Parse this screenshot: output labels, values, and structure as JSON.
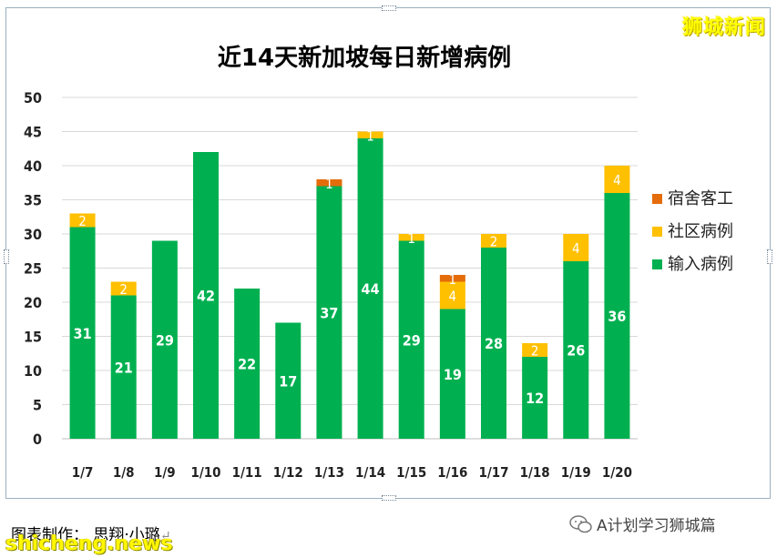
{
  "watermark_top": "狮城新闻",
  "credit": "图表制作： 思翔·小璐",
  "site": "shicheng.news",
  "wechat_label": "A计划学习狮城篇",
  "colors": {
    "local_import": "#00b050",
    "community": "#ffc000",
    "dormitory": "#e46c0a"
  },
  "chart_data": {
    "type": "bar",
    "stacked": true,
    "title": "近14天新加坡每日新增病例",
    "categories": [
      "1/7",
      "1/8",
      "1/9",
      "1/10",
      "1/11",
      "1/12",
      "1/13",
      "1/14",
      "1/15",
      "1/16",
      "1/17",
      "1/18",
      "1/19",
      "1/20"
    ],
    "series": [
      {
        "name": "输入病例",
        "color": "#00b050",
        "values": [
          31,
          21,
          29,
          42,
          22,
          17,
          37,
          44,
          29,
          19,
          28,
          12,
          26,
          36
        ]
      },
      {
        "name": "社区病例",
        "color": "#ffc000",
        "values": [
          2,
          2,
          0,
          0,
          0,
          0,
          0,
          1,
          1,
          4,
          2,
          2,
          4,
          4
        ]
      },
      {
        "name": "宿舍客工",
        "color": "#e46c0a",
        "values": [
          0,
          0,
          0,
          0,
          0,
          0,
          1,
          0,
          0,
          1,
          0,
          0,
          0,
          0
        ]
      }
    ],
    "ylim": [
      0,
      50
    ],
    "yticks": [
      0,
      5,
      10,
      15,
      20,
      25,
      30,
      35,
      40,
      45,
      50
    ],
    "grid": true,
    "legend_position": "right"
  }
}
